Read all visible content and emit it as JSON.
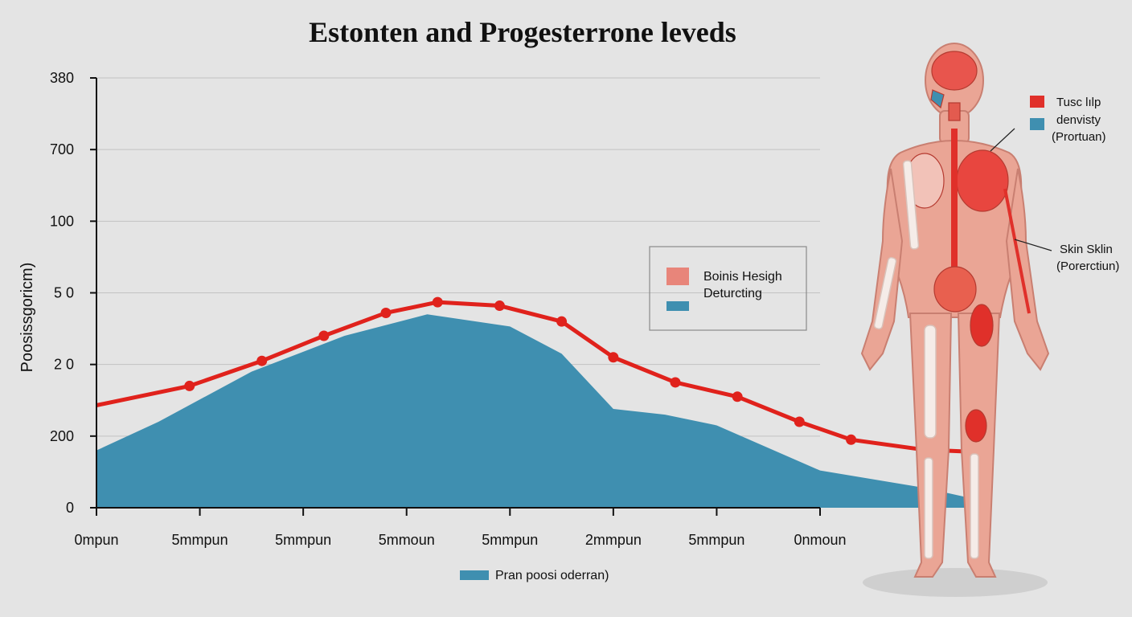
{
  "chart_data": {
    "type": "area",
    "title": "Estonten and Progesterrone leveds",
    "xlabel": "",
    "ylabel": "Poosissgoricm)",
    "x_ticks": [
      "0mpun",
      "5mmpun",
      "5mmpun",
      "5mmoun",
      "5mmpun",
      "2mmpun",
      "5mmpun",
      "0nmoun"
    ],
    "y_ticks": [
      "0",
      "200",
      "2 0",
      "5 0",
      "100",
      "700",
      "380"
    ],
    "grid": true,
    "series": [
      {
        "name": "Boinis Hesigh",
        "kind": "line",
        "color": "#e0221c",
        "x": [
          0,
          0.9,
          1.6,
          2.2,
          2.8,
          3.3,
          3.9,
          4.5,
          5.0,
          5.6,
          6.2,
          6.8,
          7.3,
          8.0,
          8.5
        ],
        "values": [
          1.43,
          1.7,
          2.05,
          2.4,
          2.72,
          2.87,
          2.82,
          2.6,
          2.1,
          1.75,
          1.55,
          1.2,
          0.95,
          0.81,
          0.78
        ]
      },
      {
        "name": "Deturcting",
        "kind": "area",
        "color": "#3f8fb0",
        "x": [
          0,
          0.6,
          1.5,
          2.4,
          3.2,
          4.0,
          4.5,
          5.0,
          5.5,
          6.0,
          7.0,
          8.0,
          8.5
        ],
        "values": [
          0.8,
          1.2,
          1.9,
          2.4,
          2.7,
          2.53,
          2.15,
          1.38,
          1.3,
          1.15,
          0.52,
          0.28,
          0.12
        ]
      }
    ],
    "legend": {
      "position": "center-right",
      "entries": [
        {
          "label": "Boinis Hesigh",
          "color": "#e8857a"
        },
        {
          "label": "Deturcting",
          "color": "#3f8fb0"
        }
      ]
    },
    "bottom_legend": {
      "label": "Pran poosi oderran)",
      "color": "#3f8fb0"
    }
  },
  "figure": {
    "legend_top": [
      {
        "label": "Tusc lılp",
        "color": "#e0302a"
      },
      {
        "label": "denvisty",
        "color": "#3f8fb0"
      }
    ],
    "legend_top_note": "(Prortuan)",
    "callout_label": "Skin Sklin",
    "callout_note": "(Porerctiun)"
  }
}
